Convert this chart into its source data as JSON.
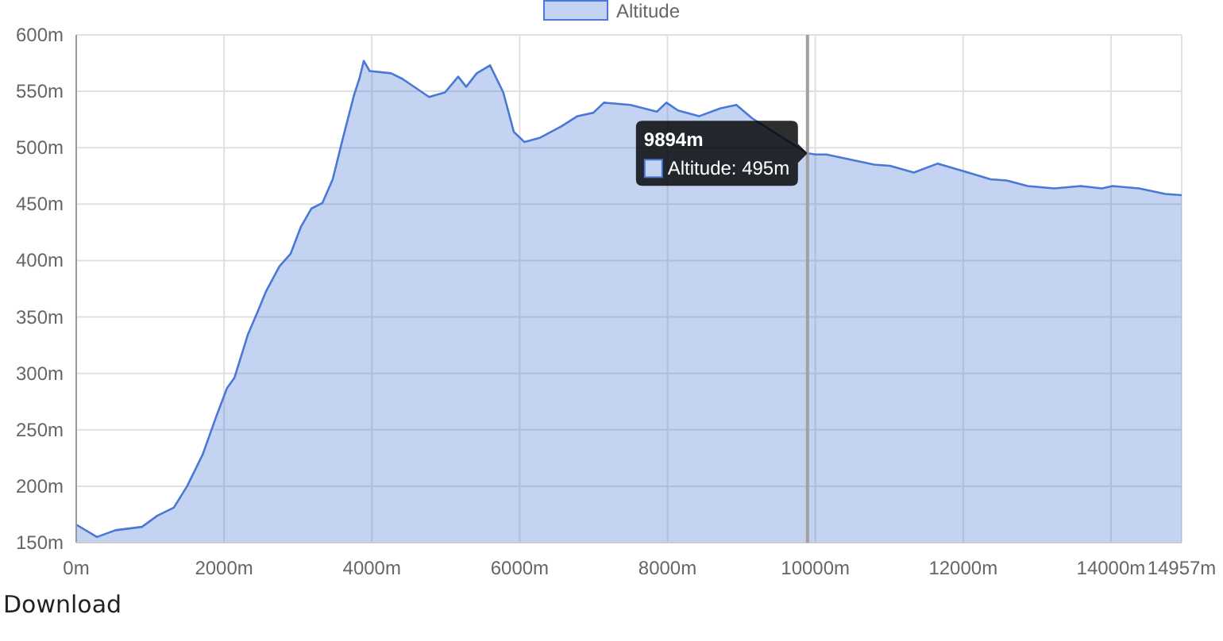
{
  "chart_data": {
    "type": "area",
    "legend": "top",
    "grid": true,
    "xlim": [
      0,
      14957
    ],
    "xticks": [
      {
        "value": 0,
        "label": "0m"
      },
      {
        "value": 2000,
        "label": "2000m"
      },
      {
        "value": 4000,
        "label": "4000m"
      },
      {
        "value": 6000,
        "label": "6000m"
      },
      {
        "value": 8000,
        "label": "8000m"
      },
      {
        "value": 10000,
        "label": "10000m"
      },
      {
        "value": 12000,
        "label": "12000m"
      },
      {
        "value": 14000,
        "label": "14000m"
      },
      {
        "value": 14957,
        "label": "14957m"
      }
    ],
    "ylim": [
      150,
      600
    ],
    "yticks": [
      {
        "value": 150,
        "label": "150m"
      },
      {
        "value": 200,
        "label": "200m"
      },
      {
        "value": 250,
        "label": "250m"
      },
      {
        "value": 300,
        "label": "300m"
      },
      {
        "value": 350,
        "label": "350m"
      },
      {
        "value": 400,
        "label": "400m"
      },
      {
        "value": 450,
        "label": "450m"
      },
      {
        "value": 500,
        "label": "500m"
      },
      {
        "value": 550,
        "label": "550m"
      },
      {
        "value": 600,
        "label": "600m"
      }
    ],
    "ref_lines": [
      {
        "axis": "x",
        "value": 9894,
        "color": "#a0a0a0"
      }
    ],
    "annotations": [
      "9894m",
      "Altitude: 495m",
      "Download"
    ],
    "series": [
      {
        "name": "Altitude",
        "color": "#4a78d6",
        "x": [
          0,
          280,
          530,
          890,
          1100,
          1320,
          1500,
          1710,
          1890,
          2040,
          2140,
          2320,
          2470,
          2570,
          2750,
          2900,
          3040,
          3180,
          3330,
          3470,
          3610,
          3760,
          3830,
          3890,
          3970,
          4260,
          4415,
          4774,
          4989,
          5168,
          5276,
          5419,
          5599,
          5778,
          5921,
          6065,
          6280,
          6566,
          6781,
          6996,
          7140,
          7498,
          7856,
          7985,
          8143,
          8430,
          8717,
          8932,
          9147,
          9362,
          9648,
          9894,
          10007,
          10150,
          10581,
          10796,
          11011,
          11333,
          11656,
          12014,
          12372,
          12587,
          12874,
          13233,
          13591,
          13878,
          14022,
          14380,
          14738,
          14957
        ],
        "values": [
          166,
          155,
          161,
          164,
          174,
          181,
          200,
          228,
          261,
          287,
          296,
          334,
          357,
          373,
          395,
          406,
          430,
          446,
          451,
          472,
          509,
          547,
          561,
          577,
          568,
          566,
          561,
          545,
          549,
          563,
          554,
          566,
          573,
          549,
          514,
          505,
          509,
          519,
          528,
          531,
          540,
          538,
          532,
          540,
          533,
          528,
          535,
          538,
          526,
          null,
          null,
          495,
          494,
          494,
          488,
          485,
          484,
          478,
          486,
          479,
          472,
          471,
          466,
          464,
          466,
          464,
          466,
          464,
          459,
          458
        ]
      }
    ]
  }
}
